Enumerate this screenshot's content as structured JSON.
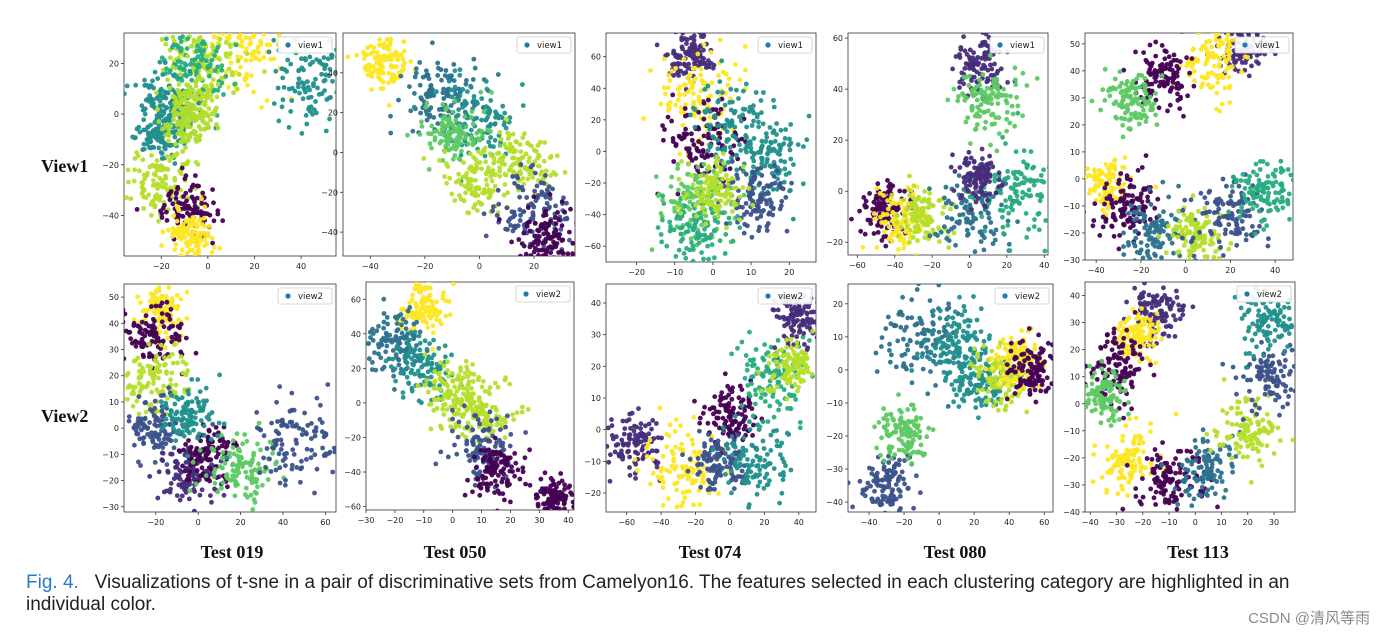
{
  "row_labels": [
    "View1",
    "View2"
  ],
  "column_labels": [
    "Test 019",
    "Test 050",
    "Test 074",
    "Test 080",
    "Test 113"
  ],
  "caption": {
    "figure_number": "Fig. 4.",
    "text": "Visualizations of t-sne in a pair of discriminative sets from Camelyon16. The features selected in each clustering category are highlighted in an individual color."
  },
  "watermark": "CSDN @清风等雨",
  "colors": {
    "legend_dot": "#1f77b4",
    "palette": [
      "#440154",
      "#3b528b",
      "#21908d",
      "#5dc963",
      "#b5de2b",
      "#fde725",
      "#2c728e",
      "#472d7b",
      "#27ad81",
      "#addc30"
    ]
  },
  "chart_data": [
    {
      "type": "scatter",
      "legend": "view1",
      "xticks": [
        "−20",
        "0",
        "20",
        "40"
      ],
      "yticks": [
        "20",
        "0",
        "−20",
        "−40"
      ],
      "xlim": [
        -36,
        55
      ],
      "ylim": [
        -56,
        32
      ],
      "clusters": [
        [
          15,
          25,
          0.31,
          5
        ],
        [
          -2,
          23,
          0.29,
          4
        ],
        [
          45,
          13,
          0.27,
          2
        ],
        [
          -5,
          17,
          0.24,
          8
        ],
        [
          -18,
          5,
          0.22,
          2
        ],
        [
          -7,
          5,
          0.2,
          4
        ],
        [
          -20,
          -8,
          0.17,
          2
        ],
        [
          -10,
          -3,
          0.17,
          9
        ],
        [
          -20,
          -27,
          0.22,
          4
        ],
        [
          -8,
          -38,
          0.2,
          0
        ],
        [
          -8,
          -47,
          0.17,
          5
        ]
      ]
    },
    {
      "type": "scatter",
      "legend": "view1",
      "xticks": [
        "−40",
        "−20",
        "0",
        "20"
      ],
      "yticks": [
        "40",
        "20",
        "0",
        "−20",
        "−40"
      ],
      "xlim": [
        -50,
        35
      ],
      "ylim": [
        -52,
        60
      ],
      "clusters": [
        [
          -35,
          45,
          0.17,
          5
        ],
        [
          -15,
          28,
          0.24,
          6
        ],
        [
          0,
          17,
          0.26,
          2
        ],
        [
          -10,
          10,
          0.2,
          3
        ],
        [
          15,
          -5,
          0.2,
          4
        ],
        [
          0,
          -15,
          0.2,
          4
        ],
        [
          20,
          -30,
          0.27,
          1
        ],
        [
          25,
          -43,
          0.2,
          0
        ]
      ]
    },
    {
      "type": "scatter",
      "legend": "view1",
      "xticks": [
        "−20",
        "−10",
        "0",
        "10",
        "20"
      ],
      "yticks": [
        "60",
        "40",
        "20",
        "0",
        "−20",
        "−40",
        "−60"
      ],
      "xlim": [
        -28,
        27
      ],
      "ylim": [
        -70,
        75
      ],
      "clusters": [
        [
          -6,
          60,
          0.18,
          7
        ],
        [
          -4,
          35,
          0.31,
          5
        ],
        [
          -2,
          5,
          0.27,
          0
        ],
        [
          5,
          15,
          0.27,
          2
        ],
        [
          15,
          -7,
          0.27,
          2
        ],
        [
          -5,
          -30,
          0.24,
          3
        ],
        [
          -5,
          -50,
          0.24,
          8
        ],
        [
          12,
          -30,
          0.22,
          1
        ],
        [
          0,
          -25,
          0.2,
          4
        ]
      ]
    },
    {
      "type": "scatter",
      "legend": "view1",
      "xticks": [
        "−60",
        "−40",
        "−20",
        "0",
        "20",
        "40"
      ],
      "yticks": [
        "60",
        "40",
        "20",
        "0",
        "−20"
      ],
      "xlim": [
        -65,
        42
      ],
      "ylim": [
        -25,
        62
      ],
      "clusters": [
        [
          5,
          50,
          0.2,
          7
        ],
        [
          10,
          35,
          0.22,
          3
        ],
        [
          -45,
          -8,
          0.17,
          0
        ],
        [
          -35,
          -12,
          0.2,
          5
        ],
        [
          -25,
          -10,
          0.2,
          4
        ],
        [
          0,
          -10,
          0.31,
          6
        ],
        [
          25,
          0,
          0.29,
          8
        ],
        [
          5,
          5,
          0.17,
          7
        ]
      ]
    },
    {
      "type": "scatter",
      "legend": "view1",
      "xticks": [
        "−40",
        "−20",
        "0",
        "20",
        "40"
      ],
      "yticks": [
        "50",
        "40",
        "30",
        "20",
        "10",
        "0",
        "−10",
        "−20",
        "−30"
      ],
      "xlim": [
        -45,
        48
      ],
      "ylim": [
        -30,
        54
      ],
      "clusters": [
        [
          25,
          48,
          0.17,
          7
        ],
        [
          12,
          43,
          0.22,
          5
        ],
        [
          -10,
          38,
          0.2,
          0
        ],
        [
          -25,
          30,
          0.18,
          3
        ],
        [
          -35,
          -2,
          0.17,
          5
        ],
        [
          -27,
          -10,
          0.22,
          0
        ],
        [
          -15,
          -20,
          0.24,
          6
        ],
        [
          5,
          -20,
          0.2,
          4
        ],
        [
          20,
          -12,
          0.24,
          1
        ],
        [
          35,
          -5,
          0.22,
          8
        ]
      ]
    },
    {
      "type": "scatter",
      "legend": "view2",
      "xticks": [
        "−20",
        "0",
        "20",
        "40",
        "60"
      ],
      "yticks": [
        "50",
        "40",
        "30",
        "20",
        "10",
        "0",
        "−10",
        "−20",
        "−30"
      ],
      "xlim": [
        -35,
        65
      ],
      "ylim": [
        -32,
        55
      ],
      "clusters": [
        [
          -18,
          45,
          0.17,
          5
        ],
        [
          -20,
          35,
          0.2,
          0
        ],
        [
          -22,
          18,
          0.24,
          4
        ],
        [
          -20,
          0,
          0.2,
          1
        ],
        [
          -5,
          -18,
          0.22,
          7
        ],
        [
          5,
          -10,
          0.17,
          0
        ],
        [
          20,
          -15,
          0.24,
          3
        ],
        [
          45,
          -5,
          0.27,
          1
        ],
        [
          -5,
          5,
          0.2,
          2
        ]
      ]
    },
    {
      "type": "scatter",
      "legend": "view2",
      "xticks": [
        "−30",
        "−20",
        "−10",
        "0",
        "10",
        "20",
        "30",
        "40"
      ],
      "yticks": [
        "60",
        "40",
        "20",
        "0",
        "−20",
        "−40",
        "−60"
      ],
      "xlim": [
        -30,
        42
      ],
      "ylim": [
        -62,
        70
      ],
      "clusters": [
        [
          -10,
          55,
          0.17,
          5
        ],
        [
          -20,
          35,
          0.2,
          6
        ],
        [
          -10,
          20,
          0.2,
          2
        ],
        [
          0,
          5,
          0.2,
          4
        ],
        [
          10,
          -5,
          0.22,
          4
        ],
        [
          10,
          -25,
          0.22,
          1
        ],
        [
          15,
          -40,
          0.17,
          0
        ],
        [
          35,
          -55,
          0.13,
          0
        ]
      ]
    },
    {
      "type": "scatter",
      "legend": "view2",
      "xticks": [
        "−60",
        "−40",
        "−20",
        "0",
        "20",
        "40"
      ],
      "yticks": [
        "40",
        "30",
        "20",
        "10",
        "0",
        "−10",
        "−20"
      ],
      "xlim": [
        -72,
        50
      ],
      "ylim": [
        -26,
        46
      ],
      "clusters": [
        [
          -55,
          -5,
          0.2,
          7
        ],
        [
          -25,
          -12,
          0.27,
          5
        ],
        [
          0,
          5,
          0.2,
          0
        ],
        [
          -5,
          -10,
          0.2,
          1
        ],
        [
          15,
          -10,
          0.27,
          2
        ],
        [
          25,
          15,
          0.24,
          8
        ],
        [
          40,
          35,
          0.17,
          7
        ],
        [
          35,
          20,
          0.17,
          4
        ]
      ]
    },
    {
      "type": "scatter",
      "legend": "view2",
      "xticks": [
        "−40",
        "−20",
        "0",
        "20",
        "40",
        "60"
      ],
      "yticks": [
        "20",
        "10",
        "0",
        "−10",
        "−20",
        "−30",
        "−40"
      ],
      "xlim": [
        -52,
        65
      ],
      "ylim": [
        -43,
        26
      ],
      "clusters": [
        [
          -10,
          10,
          0.31,
          6
        ],
        [
          10,
          8,
          0.27,
          2
        ],
        [
          20,
          -3,
          0.2,
          2
        ],
        [
          35,
          -2,
          0.2,
          4
        ],
        [
          45,
          3,
          0.17,
          5
        ],
        [
          55,
          0,
          0.17,
          0
        ],
        [
          -30,
          -35,
          0.2,
          1
        ],
        [
          -20,
          -20,
          0.17,
          3
        ]
      ]
    },
    {
      "type": "scatter",
      "legend": "view2",
      "xticks": [
        "−40",
        "−30",
        "−20",
        "−10",
        "0",
        "10",
        "20",
        "30"
      ],
      "yticks": [
        "40",
        "30",
        "20",
        "10",
        "0",
        "−10",
        "−20",
        "−30",
        "−40"
      ],
      "xlim": [
        -42,
        38
      ],
      "ylim": [
        -40,
        45
      ],
      "clusters": [
        [
          -15,
          35,
          0.17,
          7
        ],
        [
          -22,
          25,
          0.17,
          5
        ],
        [
          -30,
          15,
          0.2,
          0
        ],
        [
          -35,
          3,
          0.17,
          3
        ],
        [
          -25,
          -20,
          0.2,
          5
        ],
        [
          -10,
          -28,
          0.24,
          0
        ],
        [
          5,
          -25,
          0.22,
          6
        ],
        [
          20,
          -10,
          0.22,
          4
        ],
        [
          28,
          10,
          0.22,
          1
        ],
        [
          28,
          30,
          0.2,
          2
        ]
      ]
    }
  ]
}
